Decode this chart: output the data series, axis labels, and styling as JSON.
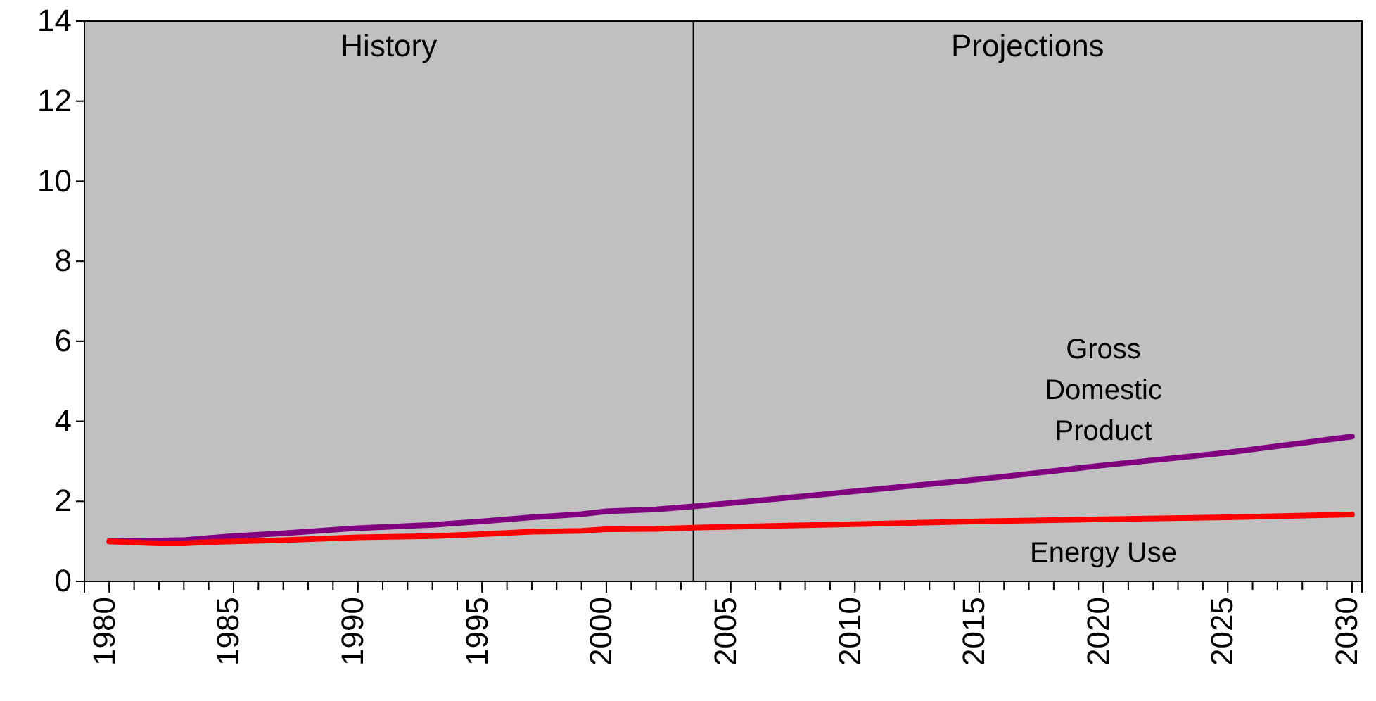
{
  "chart_data": {
    "type": "line",
    "x": [
      1980,
      1981,
      1982,
      1983,
      1984,
      1985,
      1987,
      1990,
      1993,
      1995,
      1997,
      1999,
      2000,
      2002,
      2004,
      2007,
      2010,
      2015,
      2020,
      2025,
      2030
    ],
    "series": [
      {
        "name": "Gross Domestic Product",
        "color": "#800080",
        "values": [
          1.0,
          1.01,
          1.02,
          1.03,
          1.08,
          1.13,
          1.2,
          1.33,
          1.41,
          1.5,
          1.6,
          1.68,
          1.75,
          1.8,
          1.9,
          2.07,
          2.25,
          2.55,
          2.9,
          3.22,
          3.62
        ]
      },
      {
        "name": "Energy Use",
        "color": "#ff0000",
        "values": [
          1.0,
          0.97,
          0.95,
          0.95,
          0.98,
          1.0,
          1.03,
          1.1,
          1.13,
          1.18,
          1.24,
          1.26,
          1.3,
          1.31,
          1.35,
          1.39,
          1.43,
          1.5,
          1.55,
          1.6,
          1.67
        ]
      }
    ],
    "xlim": [
      1979,
      2030.4
    ],
    "xticks": [
      1980,
      1985,
      1990,
      1995,
      2000,
      2005,
      2010,
      2015,
      2020,
      2025,
      2030
    ],
    "ylim": [
      0,
      14
    ],
    "yticks": [
      0,
      2,
      4,
      6,
      8,
      10,
      12,
      14
    ],
    "ref_lines": [
      {
        "axis": "x",
        "value": 2003.5,
        "color": "#000000"
      }
    ],
    "annotations": [
      "History",
      "Projections"
    ],
    "grid": false,
    "marker": "none",
    "line_style": "solid"
  }
}
